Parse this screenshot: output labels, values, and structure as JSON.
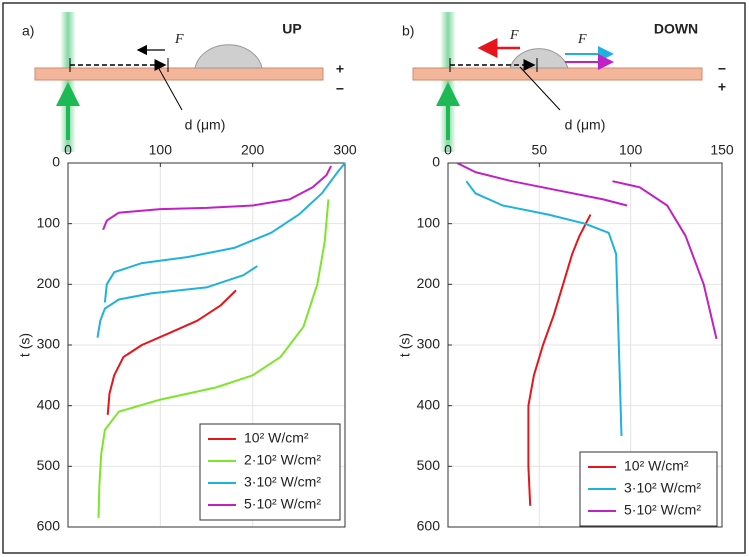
{
  "chart_data": [
    {
      "type": "line",
      "panel_label": "a)",
      "title": "UP",
      "signs": [
        "+",
        "−"
      ],
      "force_labels": [
        "F⃗"
      ],
      "xlabel": "d (μm)",
      "ylabel": "t (s)",
      "xlim": [
        0,
        300
      ],
      "xticks": [
        0,
        100,
        200,
        300
      ],
      "ylim": [
        0,
        600
      ],
      "yticks": [
        0,
        100,
        200,
        300,
        400,
        500,
        600
      ],
      "y_inverted": true,
      "grid": true,
      "legend": "lower right",
      "series": [
        {
          "name": "10² W/cm²",
          "color": "#e8141b",
          "x": [
            43,
            45,
            50,
            60,
            80,
            110,
            140,
            165,
            182
          ],
          "y": [
            415,
            380,
            350,
            320,
            300,
            280,
            260,
            235,
            210
          ]
        },
        {
          "name": "2·10² W/cm²",
          "color": "#7ce62a",
          "x": [
            33,
            34,
            36,
            40,
            55,
            100,
            160,
            200,
            230,
            255,
            270,
            278,
            282
          ],
          "y": [
            585,
            530,
            480,
            440,
            410,
            390,
            370,
            350,
            320,
            270,
            200,
            130,
            60
          ]
        },
        {
          "name": "3·10² W/cm²",
          "color": "#1fb2dd",
          "x": [
            32,
            35,
            40,
            55,
            90,
            150,
            190,
            205,
            null,
            40,
            42,
            50,
            80,
            130,
            180,
            220,
            250,
            275,
            292,
            300
          ],
          "y": [
            288,
            260,
            240,
            225,
            215,
            205,
            185,
            170,
            null,
            230,
            200,
            180,
            165,
            155,
            140,
            115,
            85,
            50,
            15,
            0
          ]
        },
        {
          "name": "5·10² W/cm²",
          "color": "#c21fc6",
          "x": [
            38,
            42,
            55,
            100,
            150,
            200,
            240,
            265,
            280,
            285
          ],
          "y": [
            110,
            95,
            82,
            76,
            74,
            70,
            60,
            40,
            20,
            5
          ]
        }
      ]
    },
    {
      "type": "line",
      "panel_label": "b)",
      "title": "DOWN",
      "signs": [
        "−",
        "+"
      ],
      "force_labels": [
        "F⃗",
        "F⃗"
      ],
      "xlabel": "d (μm)",
      "ylabel": "t (s)",
      "xlim": [
        0,
        150
      ],
      "xticks": [
        0,
        50,
        100,
        150
      ],
      "ylim": [
        0,
        600
      ],
      "yticks": [
        0,
        100,
        200,
        300,
        400,
        500,
        600
      ],
      "y_inverted": true,
      "grid": true,
      "legend": "lower right",
      "series": [
        {
          "name": "10² W/cm²",
          "color": "#e8141b",
          "x": [
            45,
            44,
            44,
            47,
            52,
            58,
            63,
            68,
            72,
            78
          ],
          "y": [
            565,
            500,
            400,
            350,
            300,
            250,
            200,
            150,
            120,
            85
          ]
        },
        {
          "name": "3·10² W/cm²",
          "color": "#1fb2dd",
          "x": [
            10,
            15,
            30,
            55,
            75,
            88,
            92,
            93,
            94,
            95
          ],
          "y": [
            30,
            50,
            70,
            85,
            100,
            115,
            150,
            250,
            350,
            450
          ]
        },
        {
          "name": "5·10² W/cm²",
          "color": "#c21fc6",
          "x": [
            5,
            15,
            35,
            60,
            85,
            98,
            null,
            90,
            105,
            120,
            130,
            140,
            147
          ],
          "y": [
            0,
            15,
            30,
            45,
            60,
            70,
            null,
            30,
            40,
            70,
            120,
            200,
            290
          ]
        }
      ]
    }
  ]
}
